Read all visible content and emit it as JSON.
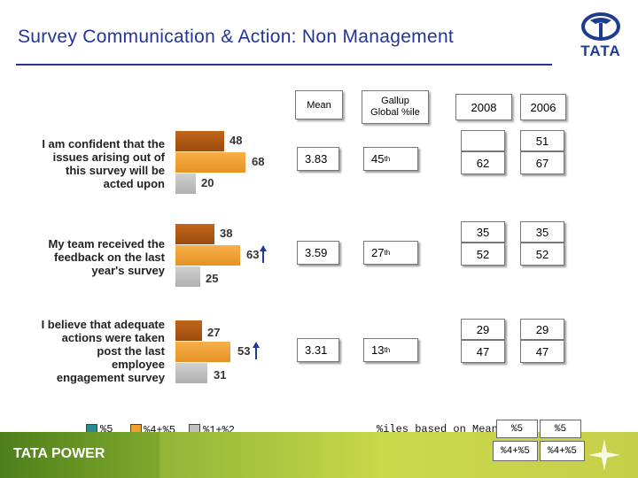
{
  "title": "Survey Communication & Action: Non Management",
  "logo": {
    "text": "TATA"
  },
  "headers": {
    "mean": "Mean",
    "gallup": "Gallup Global %ile",
    "y2008": "2008",
    "y2006": "2006"
  },
  "questions": [
    {
      "label": "I am confident that the issues arising out of this survey will be acted upon",
      "bars": {
        "top": "48",
        "middle": "68",
        "bottom": "20"
      },
      "arrow": false,
      "mean": "3.83",
      "gallup_num": "45",
      "gallup_sup": "th",
      "y2008_top": "",
      "y2006_top": "51",
      "y2008_bottom": "62",
      "y2006_bottom": "67"
    },
    {
      "label": "My team received the feedback on the last year's survey",
      "bars": {
        "top": "38",
        "middle": "63",
        "bottom": "25"
      },
      "arrow": true,
      "mean": "3.59",
      "gallup_num": "27",
      "gallup_sup": "th",
      "y2008_top": "35",
      "y2006_top": "35",
      "y2008_bottom": "52",
      "y2006_bottom": "52"
    },
    {
      "label": "I believe that adequate actions were taken post the last employee engagement survey",
      "bars": {
        "top": "27",
        "middle": "53",
        "bottom": "31"
      },
      "arrow": true,
      "mean": "3.31",
      "gallup_num": "13",
      "gallup_sup": "th",
      "y2008_top": "29",
      "y2006_top": "29",
      "y2008_bottom": "47",
      "y2006_bottom": "47"
    }
  ],
  "legend": [
    {
      "label": "%5",
      "color": "#2a8a92"
    },
    {
      "label": "%4+%5",
      "color": "#f0a030"
    },
    {
      "label": "%1+%2",
      "color": "#c0c0c0"
    }
  ],
  "footnote": "%iles based on Mean",
  "mini_legend": {
    "a1": "%5",
    "a2": "%5",
    "b1": "%4+%5",
    "b2": "%4+%5"
  },
  "footer": {
    "brand": "TATA POWER"
  },
  "chart_data": {
    "type": "bar",
    "title": "Survey Communication & Action: Non Management",
    "categories": [
      "I am confident that the issues arising out of this survey will be acted upon",
      "My team received the feedback on the last year's survey",
      "I believe that adequate actions were taken post the last employee engagement survey"
    ],
    "series": [
      {
        "name": "%5",
        "values": [
          48,
          38,
          27
        ]
      },
      {
        "name": "%4+%5",
        "values": [
          68,
          63,
          53
        ]
      },
      {
        "name": "%1+%2",
        "values": [
          20,
          25,
          31
        ]
      }
    ],
    "mean": [
      3.83,
      3.59,
      3.31
    ],
    "gallup_global_percentile": [
      45,
      27,
      13
    ],
    "y2008": {
      "top": [
        null,
        35,
        29
      ],
      "bottom": [
        62,
        52,
        47
      ]
    },
    "y2006": {
      "top": [
        51,
        35,
        29
      ],
      "bottom": [
        67,
        52,
        47
      ]
    },
    "xlim": [
      0,
      100
    ],
    "grid": false,
    "legend": "bottom-left"
  }
}
